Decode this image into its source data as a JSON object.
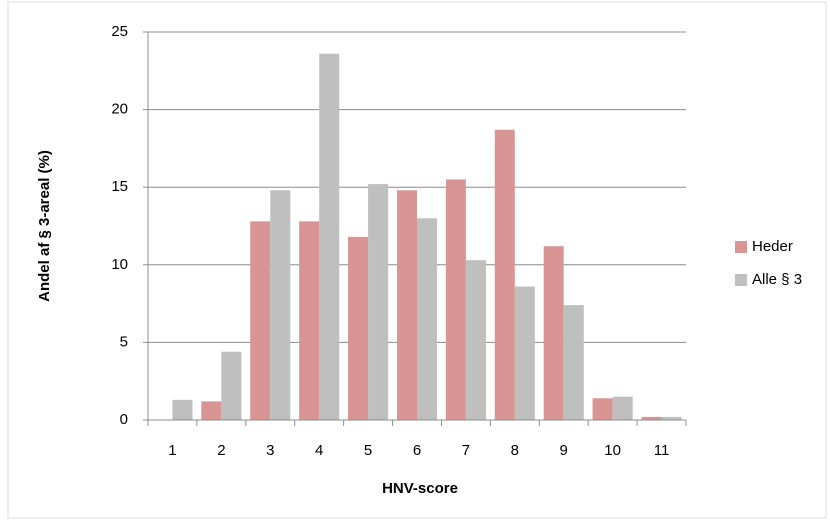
{
  "chart_data": {
    "type": "bar",
    "x_label": "HNV-score",
    "y_label": "Andel af § 3-areal (%)",
    "categories": [
      "1",
      "2",
      "3",
      "4",
      "5",
      "6",
      "7",
      "8",
      "9",
      "10",
      "11"
    ],
    "series": [
      {
        "name": "Heder",
        "color": "#d99594",
        "values": [
          0,
          1.2,
          12.8,
          12.8,
          11.8,
          14.8,
          15.5,
          18.7,
          11.2,
          1.4,
          0.2
        ]
      },
      {
        "name": "Alle § 3",
        "color": "#bfbfbf",
        "values": [
          1.3,
          4.4,
          14.8,
          23.6,
          15.2,
          13.0,
          10.3,
          8.6,
          7.4,
          1.5,
          0.2
        ]
      }
    ],
    "ylim": [
      0,
      25
    ],
    "yticks": [
      0,
      5,
      10,
      15,
      20,
      25
    ],
    "grid": true,
    "legend": "right"
  }
}
